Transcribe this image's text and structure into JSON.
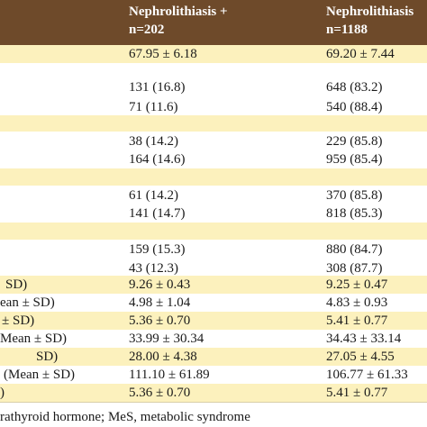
{
  "header": {
    "columns": [
      [
        "Nephrolithiasis +",
        "n=202"
      ],
      [
        "Nephrolithiasis",
        "n=1188"
      ]
    ]
  },
  "rows": [
    {
      "cells": [
        "67.95 ± 6.18",
        "69.20 ± 7.44"
      ]
    },
    {
      "cells": [
        "131 (16.8)",
        "648 (83.2)"
      ]
    },
    {
      "cells": [
        "71 (11.6)",
        "540 (88.4)"
      ]
    },
    {
      "cells": [
        "38 (14.2)",
        "229 (85.8)"
      ]
    },
    {
      "cells": [
        "164 (14.6)",
        "959 (85.4)"
      ]
    },
    {
      "cells": [
        "61 (14.2)",
        "370 (85.8)"
      ]
    },
    {
      "cells": [
        "141 (14.7)",
        "818 (85.3)"
      ]
    },
    {
      "cells": [
        "159 (15.3)",
        "880 (84.7)"
      ]
    },
    {
      "cells": [
        "43 (12.3)",
        "308 (87.7)"
      ]
    },
    {
      "label": "SD)",
      "cells": [
        "9.26 ± 0.43",
        "9.25 ± 0.47"
      ]
    },
    {
      "label": "ean ± SD)",
      "cells": [
        "4.98 ± 1.04",
        "4.83 ± 0.93"
      ]
    },
    {
      "label": "± SD)",
      "cells": [
        "5.36 ± 0.70",
        "5.41 ± 0.77"
      ]
    },
    {
      "label": "Mean ± SD)",
      "cells": [
        "33.99 ± 30.34",
        "34.43 ± 33.14"
      ]
    },
    {
      "label": "SD)",
      "cells": [
        "28.00 ± 4.38",
        "27.05 ± 4.55"
      ]
    },
    {
      "label": "(Mean ± SD)",
      "cells": [
        "111.10 ± 61.89",
        "106.77 ± 61.33"
      ]
    },
    {
      "label": ")",
      "cells": [
        "5.36 ± 0.70",
        "5.41 ± 0.77"
      ]
    }
  ],
  "footnote": "rathyroid hormone; MeS, metabolic syndrome"
}
